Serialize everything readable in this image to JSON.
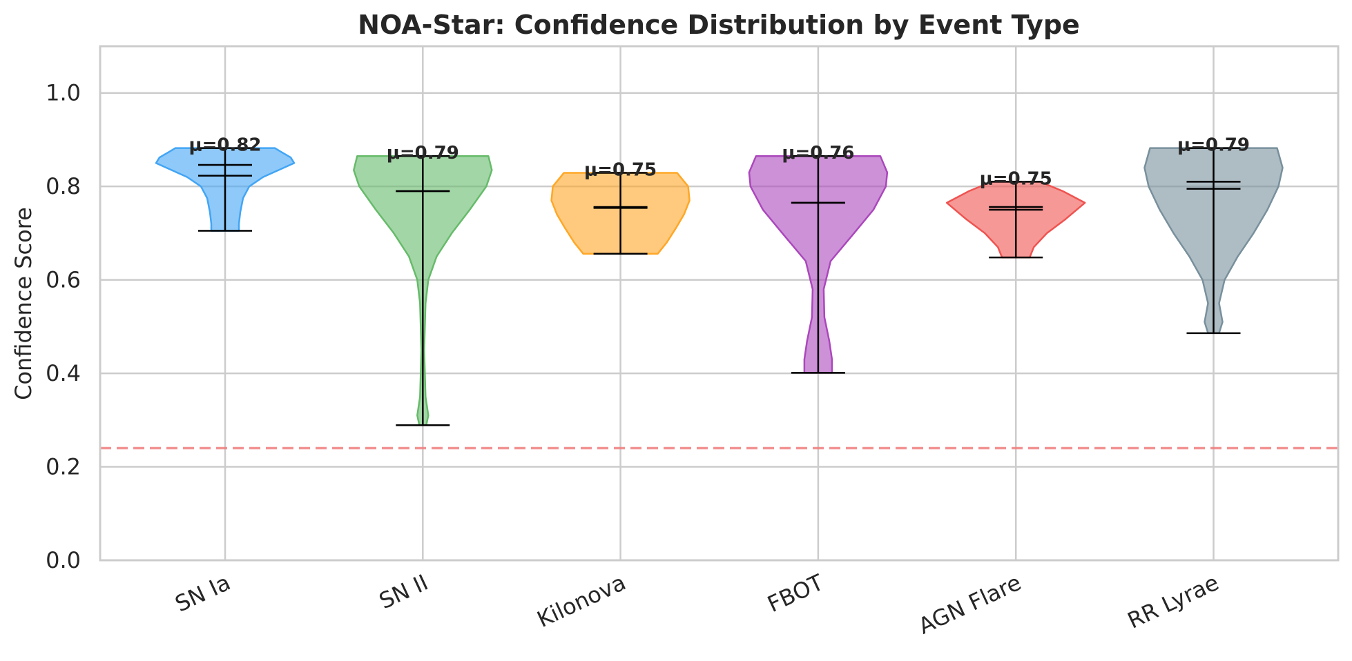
{
  "chart_data": {
    "type": "violin",
    "title": "NOA-Star: Confidence Distribution by Event Type",
    "xlabel": "",
    "ylabel": "Confidence Score",
    "ylim": [
      0.0,
      1.1
    ],
    "yticks": [
      "0.0",
      "0.2",
      "0.4",
      "0.6",
      "0.8",
      "1.0"
    ],
    "grid": true,
    "threshold_line": {
      "y": 0.24,
      "style": "dashed",
      "color": "#f08080"
    },
    "categories": [
      "SN Ia",
      "SN II",
      "Kilonova",
      "FBOT",
      "AGN Flare",
      "RR Lyrae"
    ],
    "series": [
      {
        "category": "SN Ia",
        "color": "#42a5f5",
        "min": 0.705,
        "max": 0.882,
        "mean": 0.823,
        "median": 0.846,
        "mean_label": "μ=0.82",
        "density": [
          [
            0.705,
            0.2
          ],
          [
            0.72,
            0.2
          ],
          [
            0.745,
            0.22
          ],
          [
            0.775,
            0.26
          ],
          [
            0.8,
            0.35
          ],
          [
            0.82,
            0.55
          ],
          [
            0.84,
            0.85
          ],
          [
            0.85,
            1.0
          ],
          [
            0.862,
            0.95
          ],
          [
            0.875,
            0.8
          ],
          [
            0.882,
            0.72
          ]
        ]
      },
      {
        "category": "SN II",
        "color": "#66bb6a",
        "min": 0.289,
        "max": 0.865,
        "mean": 0.79,
        "median": 0.79,
        "mean_label": "μ=0.79",
        "density": [
          [
            0.289,
            0.05
          ],
          [
            0.31,
            0.08
          ],
          [
            0.35,
            0.04
          ],
          [
            0.45,
            0.02
          ],
          [
            0.55,
            0.04
          ],
          [
            0.6,
            0.08
          ],
          [
            0.65,
            0.2
          ],
          [
            0.7,
            0.42
          ],
          [
            0.75,
            0.68
          ],
          [
            0.8,
            0.92
          ],
          [
            0.835,
            1.0
          ],
          [
            0.865,
            0.95
          ]
        ]
      },
      {
        "category": "Kilonova",
        "color": "#ffa726",
        "min": 0.656,
        "max": 0.829,
        "mean": 0.754,
        "median": 0.756,
        "mean_label": "μ=0.75",
        "density": [
          [
            0.656,
            0.54
          ],
          [
            0.68,
            0.67
          ],
          [
            0.71,
            0.8
          ],
          [
            0.74,
            0.92
          ],
          [
            0.77,
            1.0
          ],
          [
            0.8,
            0.98
          ],
          [
            0.829,
            0.82
          ]
        ]
      },
      {
        "category": "FBOT",
        "color": "#ab47bc",
        "min": 0.401,
        "max": 0.865,
        "mean": 0.765,
        "median": 0.765,
        "mean_label": "μ=0.76",
        "density": [
          [
            0.401,
            0.2
          ],
          [
            0.43,
            0.2
          ],
          [
            0.47,
            0.16
          ],
          [
            0.52,
            0.09
          ],
          [
            0.58,
            0.08
          ],
          [
            0.64,
            0.18
          ],
          [
            0.7,
            0.52
          ],
          [
            0.75,
            0.8
          ],
          [
            0.8,
            0.98
          ],
          [
            0.83,
            1.0
          ],
          [
            0.865,
            0.9
          ]
        ]
      },
      {
        "category": "AGN Flare",
        "color": "#ef5350",
        "min": 0.648,
        "max": 0.81,
        "mean": 0.75,
        "median": 0.756,
        "mean_label": "μ=0.75",
        "density": [
          [
            0.648,
            0.2
          ],
          [
            0.67,
            0.26
          ],
          [
            0.7,
            0.45
          ],
          [
            0.73,
            0.72
          ],
          [
            0.765,
            1.0
          ],
          [
            0.79,
            0.68
          ],
          [
            0.81,
            0.35
          ]
        ]
      },
      {
        "category": "RR Lyrae",
        "color": "#78909c",
        "min": 0.486,
        "max": 0.882,
        "mean": 0.795,
        "median": 0.81,
        "mean_label": "μ=0.79",
        "density": [
          [
            0.486,
            0.08
          ],
          [
            0.51,
            0.13
          ],
          [
            0.55,
            0.08
          ],
          [
            0.6,
            0.16
          ],
          [
            0.65,
            0.35
          ],
          [
            0.7,
            0.58
          ],
          [
            0.75,
            0.78
          ],
          [
            0.8,
            0.94
          ],
          [
            0.84,
            1.0
          ],
          [
            0.882,
            0.92
          ]
        ]
      }
    ]
  }
}
